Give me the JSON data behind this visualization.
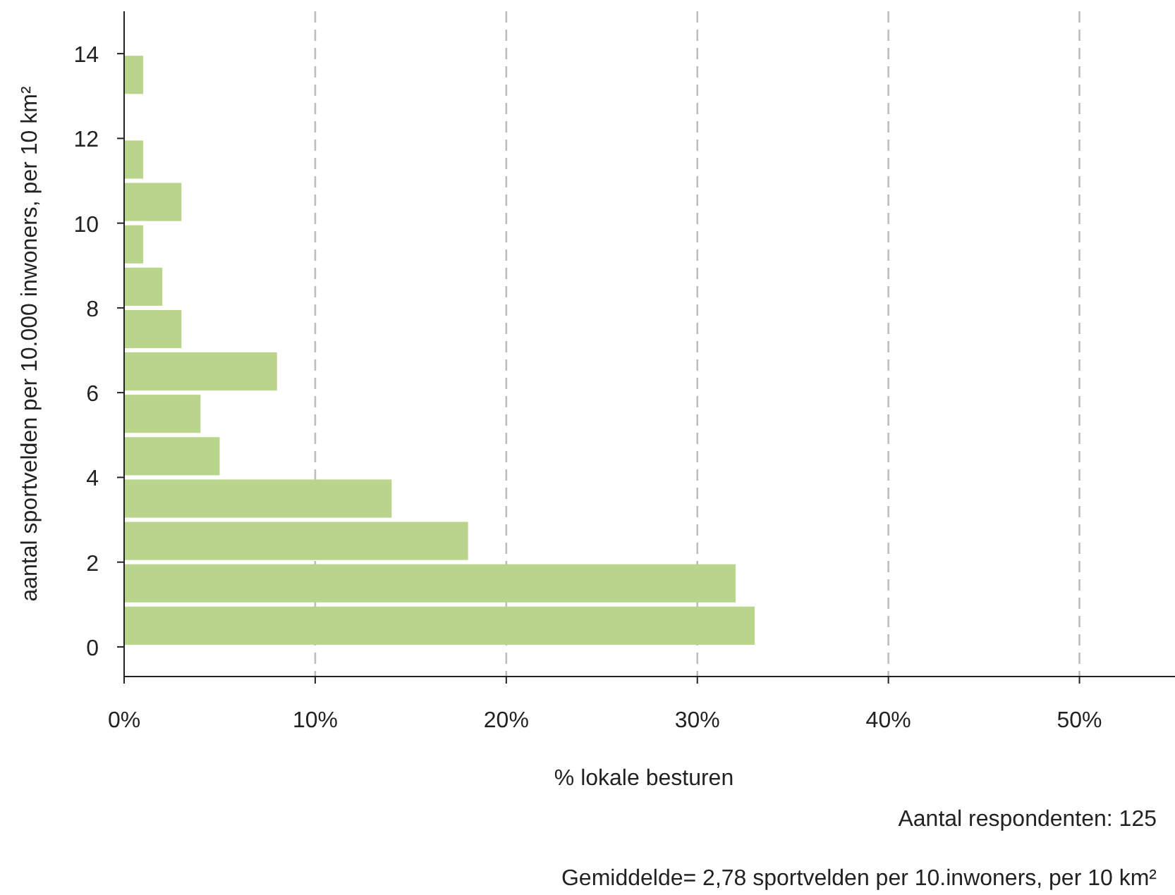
{
  "chart_data": {
    "type": "histogram",
    "orientation": "horizontal",
    "xlabel": "% lokale besturen",
    "ylabel": "aantal sportvelden per 10.000 inwoners, per 10 km²",
    "bins": [
      0,
      1,
      2,
      3,
      4,
      5,
      6,
      7,
      8,
      9,
      10,
      11,
      12,
      13,
      14
    ],
    "values": [
      33,
      32,
      18,
      14,
      5,
      4,
      8,
      3,
      2,
      1,
      3,
      1,
      0,
      1
    ],
    "color": "#b9d48b",
    "xlim": [
      0,
      55
    ],
    "xticks": [
      {
        "value": 0,
        "label": "0%"
      },
      {
        "value": 10,
        "label": "10%"
      },
      {
        "value": 20,
        "label": "20%"
      },
      {
        "value": 30,
        "label": "30%"
      },
      {
        "value": 40,
        "label": "40%"
      },
      {
        "value": 50,
        "label": "50%"
      }
    ],
    "ylim": [
      -0.7,
      15
    ],
    "yticks": [
      0,
      2,
      4,
      6,
      8,
      10,
      12,
      14
    ],
    "grid": "x",
    "line_style": "dashed",
    "annotations": [
      "Aantal respondenten: 125",
      "Gemiddelde= 2,78 sportvelden per 10.inwoners, per 10 km²"
    ]
  }
}
